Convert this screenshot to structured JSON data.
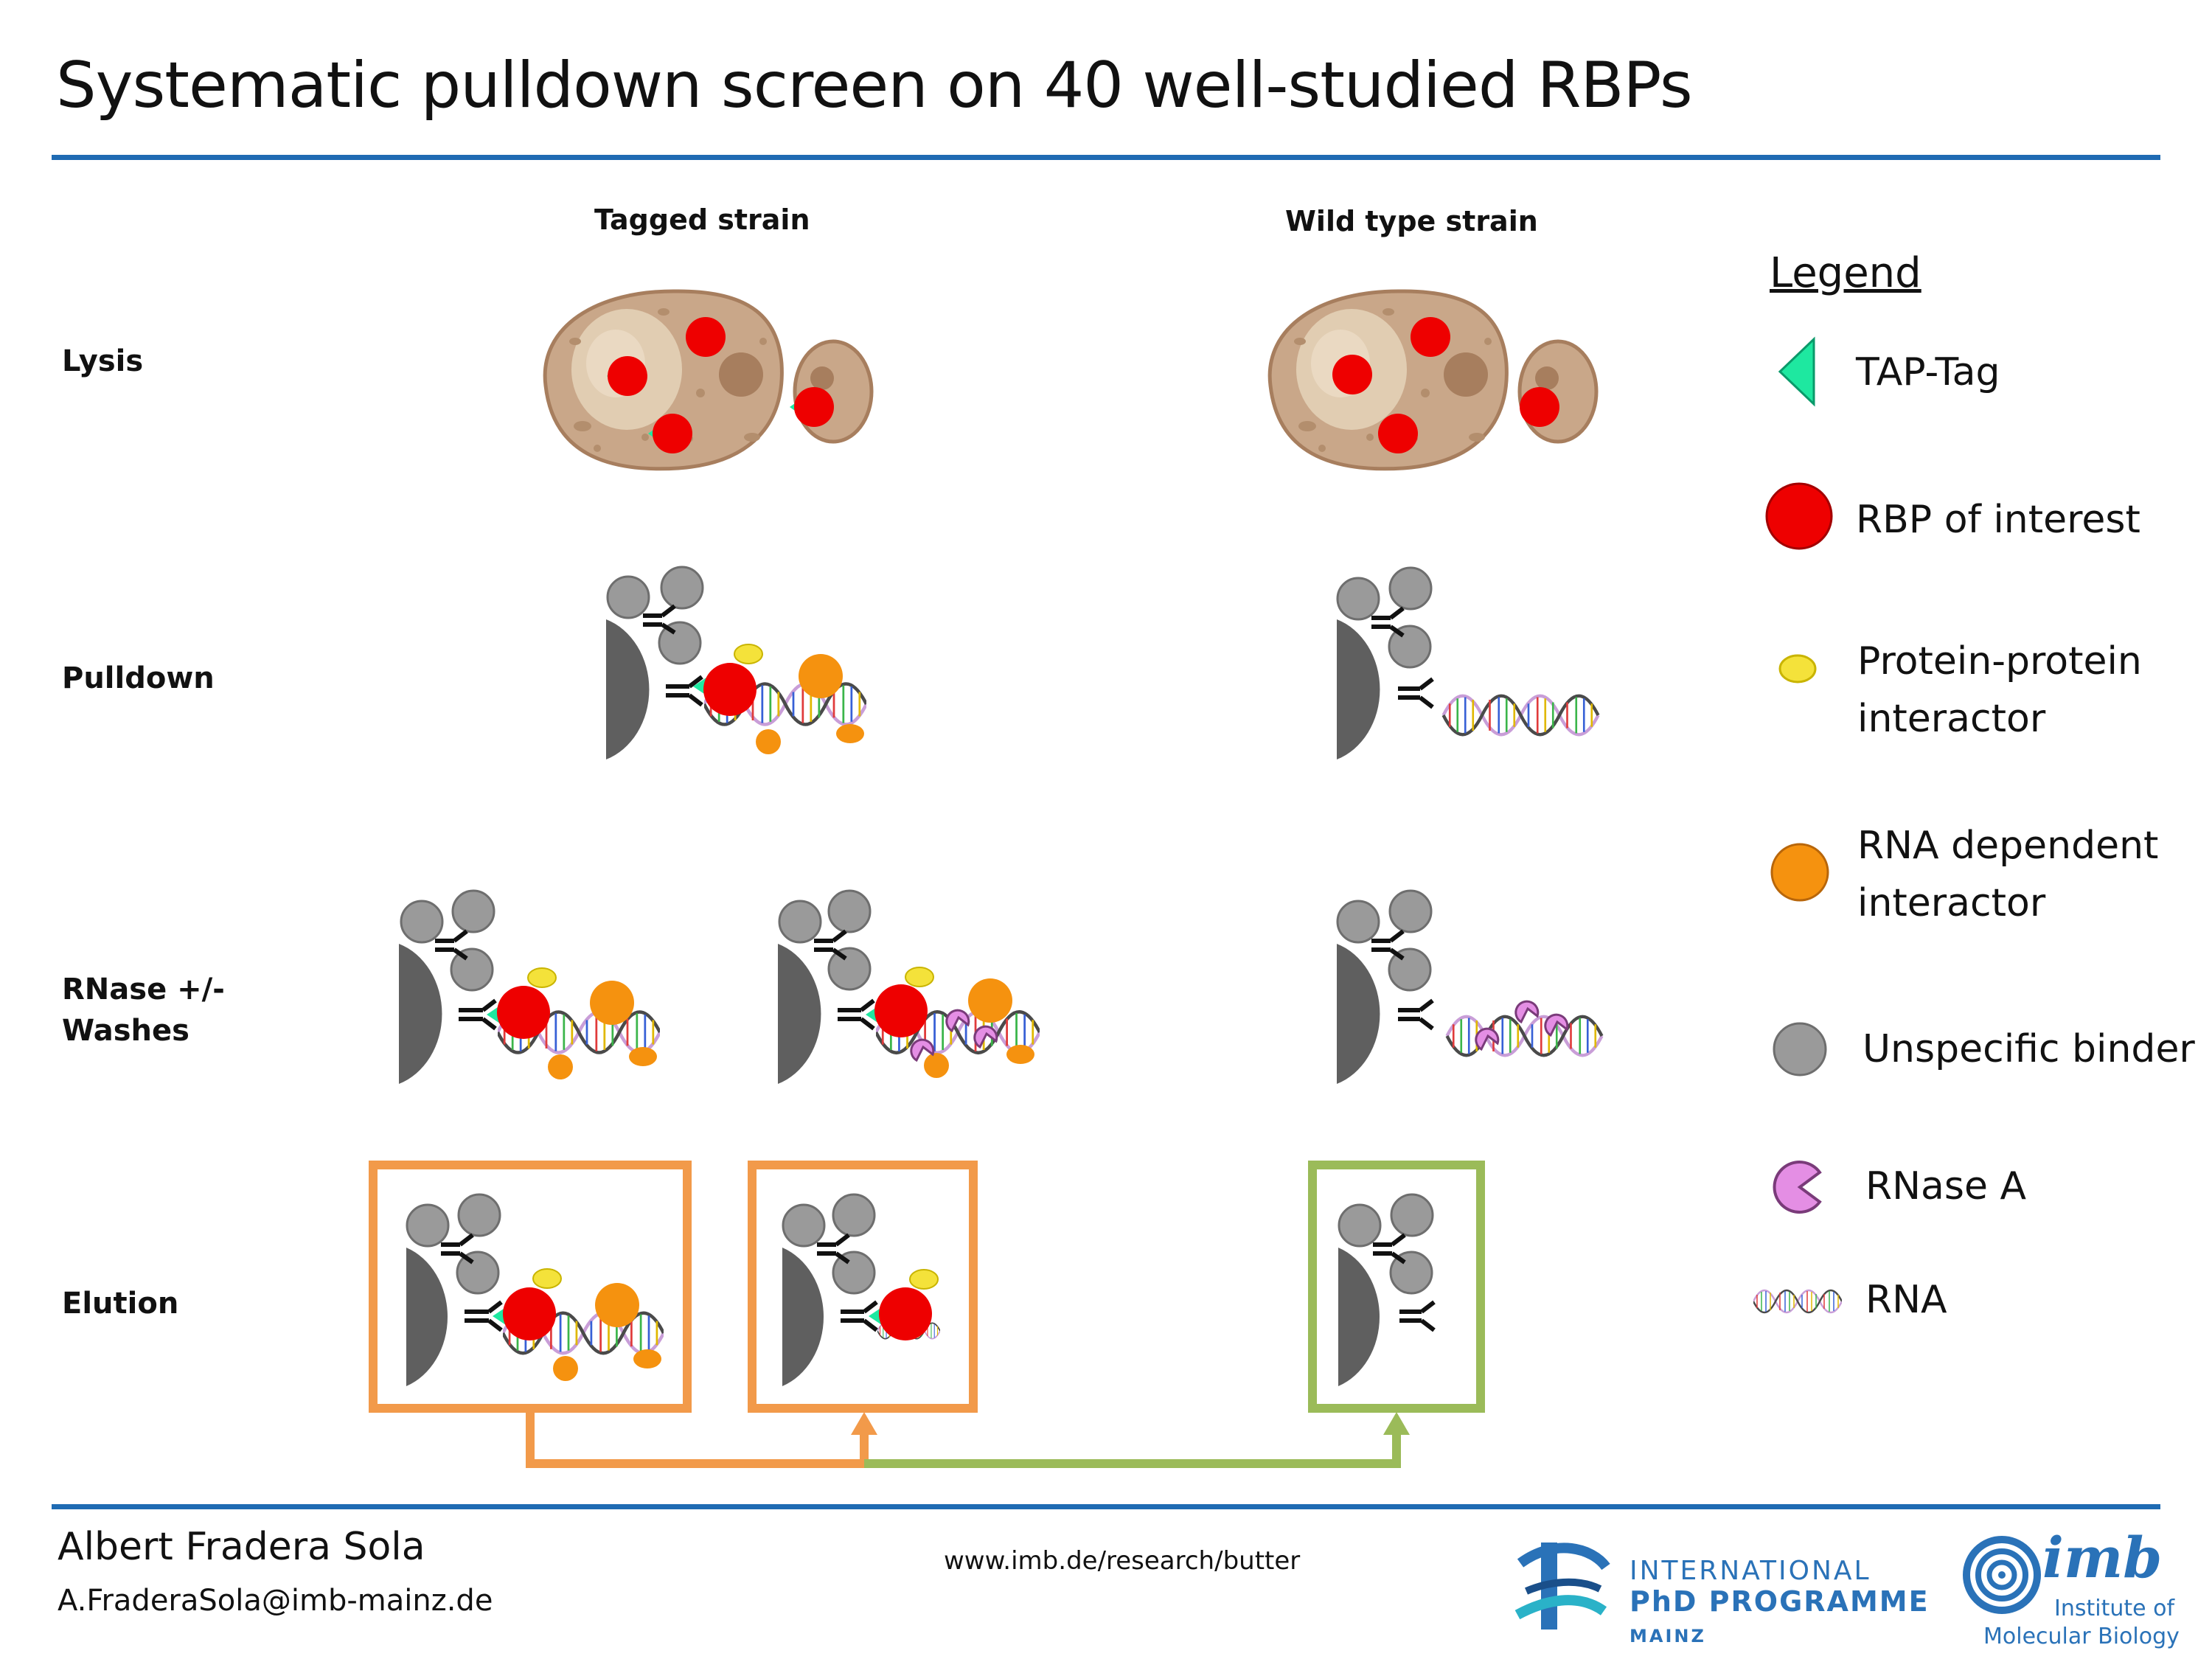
{
  "title": "Systematic pulldown screen on 40 well-studied RBPs",
  "columns": {
    "tagged": "Tagged strain",
    "wild": "Wild type strain"
  },
  "rows": {
    "lysis": "Lysis",
    "pulldown": "Pulldown",
    "rnase_line1": "RNase +/-",
    "rnase_line2": "Washes",
    "elution": "Elution"
  },
  "legend": {
    "title": "Legend",
    "items": {
      "tap_tag": "TAP-Tag",
      "rbp": "RBP of interest",
      "ppi_line1": "Protein-protein",
      "ppi_line2": "interactor",
      "rdi_line1": "RNA dependent",
      "rdi_line2": "interactor",
      "unspecific": "Unspecific binder",
      "rnase": "RNase A",
      "rna": "RNA"
    }
  },
  "colors": {
    "accent_blue": "#1f6bb3",
    "rbp_red": "#ee0000",
    "tap_green": "#1ee8a0",
    "ppi_yellow": "#f4e23a",
    "rdi_orange": "#f5920f",
    "unspecific_grey": "#9a9a9a",
    "rnase_pink": "#e48ee4",
    "bead_grey": "#5f5f5f",
    "box_orange": "#f29a4a",
    "box_green": "#9bbb59",
    "cell_tan": "#c9a789"
  },
  "footer": {
    "name": "Albert Fradera Sola",
    "email": "A.FraderaSola@imb-mainz.de",
    "url": "www.imb.de/research/butter"
  },
  "logos": {
    "ipp_line1": "INTERNATIONAL",
    "ipp_line2": "PhD PROGRAMME",
    "ipp_line3": "MAINZ",
    "imb_mark": "imb",
    "imb_line1": "Institute of",
    "imb_line2": "Molecular Biology"
  }
}
